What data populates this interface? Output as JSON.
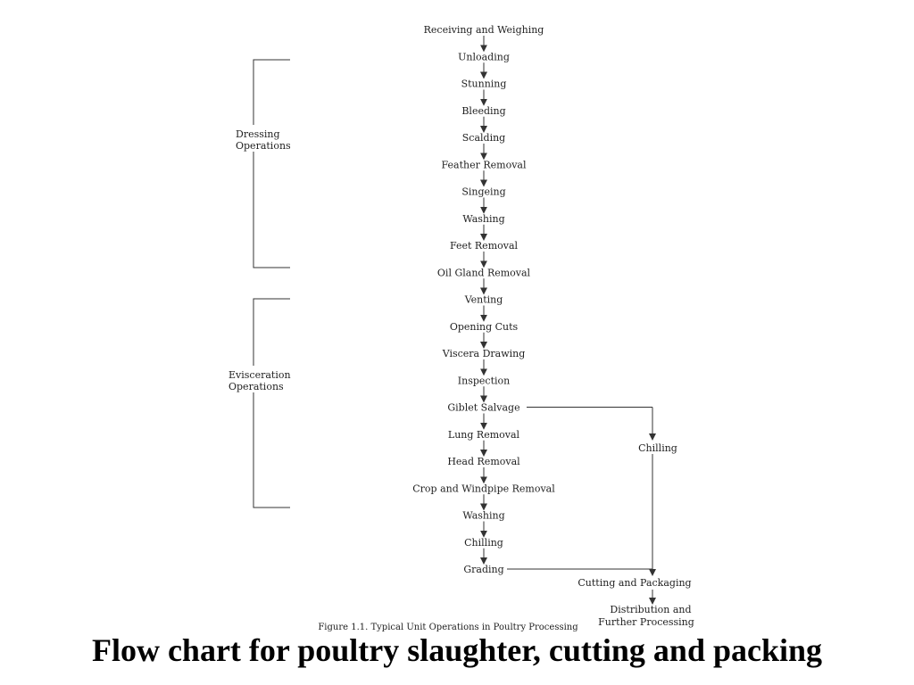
{
  "slide": {
    "title": "Flow chart for poultry slaughter, cutting and packing"
  },
  "flowchart": {
    "main_steps": [
      "Receiving and Weighing",
      "Unloading",
      "Stunning",
      "Bleeding",
      "Scalding",
      "Feather Removal",
      "Singeing",
      "Washing",
      "Feet Removal",
      "Oil Gland Removal",
      "Venting",
      "Opening Cuts",
      "Viscera Drawing",
      "Inspection",
      "Giblet Salvage",
      "Lung Removal",
      "Head Removal",
      "Crop and Windpipe Removal",
      "Washing",
      "Chilling",
      "Grading"
    ],
    "side_steps": {
      "giblet_branch": "Chilling",
      "cutting": "Cutting and  Packaging",
      "distribution_line1": "Distribution and",
      "distribution_line2": "Further Processing"
    },
    "groups": {
      "dressing_line1": "Dressing",
      "dressing_line2": "Operations",
      "evisceration_line1": "Evisceration",
      "evisceration_line2": "Operations"
    },
    "faded_caption": "Figure 1.1. Typical Unit Operations in Poultry Processing",
    "line_color": "#333333",
    "text_color": "#222222"
  }
}
